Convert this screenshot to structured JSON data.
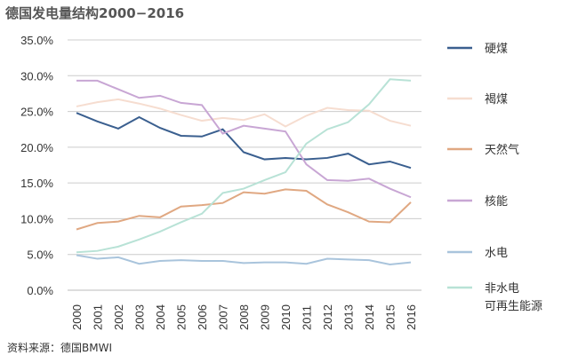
{
  "title": "德国发电量结构2000−2016",
  "source": "资料来源：德国BMWI",
  "chart_data": {
    "type": "line",
    "title": "德国发电量结构2000−2016",
    "xlabel": "",
    "ylabel": "",
    "ylim": [
      0,
      35
    ],
    "yticks": [
      "0.0%",
      "5.0%",
      "10.0%",
      "15.0%",
      "20.0%",
      "25.0%",
      "30.0%",
      "35.0%"
    ],
    "categories": [
      "2000",
      "2001",
      "2002",
      "2003",
      "2004",
      "2005",
      "2006",
      "2007",
      "2008",
      "2009",
      "2010",
      "2011",
      "2012",
      "2013",
      "2014",
      "2015",
      "2016"
    ],
    "grid": "horizontal",
    "legend_position": "right",
    "series": [
      {
        "name": "硬煤",
        "color": "#3a5f8f",
        "values": [
          24.8,
          23.6,
          22.6,
          24.2,
          22.7,
          21.6,
          21.5,
          22.5,
          19.3,
          18.3,
          18.5,
          18.3,
          18.5,
          19.1,
          17.6,
          18.0,
          17.1
        ]
      },
      {
        "name": "褐煤",
        "color": "#f6ddd0",
        "values": [
          25.7,
          26.3,
          26.7,
          26.1,
          25.4,
          24.5,
          23.7,
          24.1,
          23.8,
          24.6,
          22.9,
          24.4,
          25.5,
          25.2,
          25.1,
          23.7,
          23.0
        ]
      },
      {
        "name": "天然气",
        "color": "#e0a882",
        "values": [
          8.5,
          9.4,
          9.6,
          10.4,
          10.2,
          11.7,
          11.9,
          12.2,
          13.7,
          13.5,
          14.1,
          13.9,
          12.0,
          10.9,
          9.6,
          9.5,
          12.3
        ]
      },
      {
        "name": "核能",
        "color": "#c8a6d4",
        "values": [
          29.3,
          29.3,
          28.1,
          26.9,
          27.2,
          26.2,
          25.9,
          21.9,
          23.0,
          22.6,
          22.2,
          17.6,
          15.4,
          15.3,
          15.6,
          14.2,
          13.0
        ]
      },
      {
        "name": "水电",
        "color": "#a9c4dc",
        "values": [
          4.9,
          4.4,
          4.6,
          3.7,
          4.1,
          4.2,
          4.1,
          4.1,
          3.8,
          3.9,
          3.9,
          3.7,
          4.4,
          4.3,
          4.2,
          3.6,
          3.9
        ]
      },
      {
        "name": "非水电可再生能源",
        "label_lines": [
          "非水电",
          "可再生能源"
        ],
        "color": "#b8e2d6",
        "values": [
          5.3,
          5.5,
          6.1,
          7.1,
          8.2,
          9.5,
          10.7,
          13.6,
          14.2,
          15.4,
          16.5,
          20.5,
          22.5,
          23.5,
          26.0,
          29.5,
          29.3
        ]
      }
    ]
  }
}
